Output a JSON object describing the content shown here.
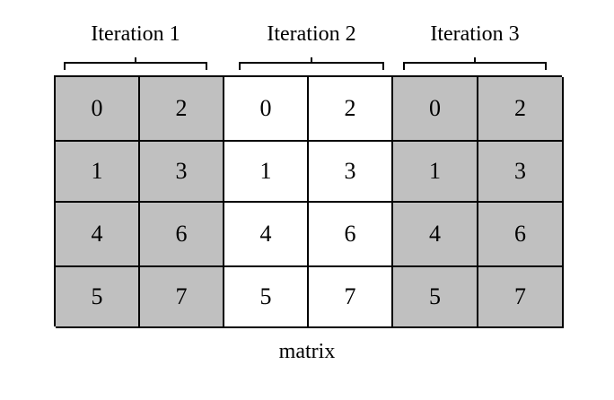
{
  "iterations": [
    "Iteration 1",
    "Iteration 2",
    "Iteration 3"
  ],
  "matrix": {
    "rows": [
      [
        "0",
        "2",
        "0",
        "2",
        "0",
        "2"
      ],
      [
        "1",
        "3",
        "1",
        "3",
        "1",
        "3"
      ],
      [
        "4",
        "6",
        "4",
        "6",
        "4",
        "6"
      ],
      [
        "5",
        "7",
        "5",
        "7",
        "5",
        "7"
      ]
    ],
    "shaded_columns": [
      0,
      1,
      4,
      5
    ],
    "shade_color": "#c0c0c0"
  },
  "caption": "matrix"
}
